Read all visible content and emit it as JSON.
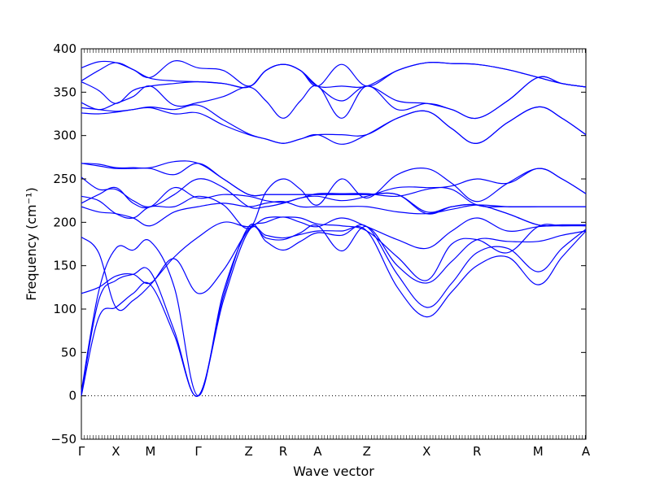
{
  "chart_data": {
    "type": "line",
    "xlabel": "Wave vector",
    "ylabel": "Frequency (cm⁻¹)",
    "ylim": [
      -50,
      400
    ],
    "yticks": [
      -50,
      0,
      50,
      100,
      150,
      200,
      250,
      300,
      350,
      400
    ],
    "xlim": [
      0,
      19
    ],
    "path_points": [
      {
        "label": "Γ",
        "x": 0
      },
      {
        "label": "X",
        "x": 1.3
      },
      {
        "label": "M",
        "x": 2.6
      },
      {
        "label": "Γ",
        "x": 4.4
      },
      {
        "label": "Z",
        "x": 6.3
      },
      {
        "label": "R",
        "x": 7.6
      },
      {
        "label": "A",
        "x": 8.9
      },
      {
        "label": "Z",
        "x": 10.75
      },
      {
        "label": "X",
        "x": 13.0
      },
      {
        "label": "R",
        "x": 14.9
      },
      {
        "label": "M",
        "x": 17.2
      },
      {
        "label": "A",
        "x": 19.0
      }
    ],
    "zero_line": true,
    "grid": false,
    "line_color": "#0000ff",
    "series": [
      {
        "x": [
          0,
          0.65,
          1.3,
          1.95,
          2.6,
          3.5,
          4.4,
          5.35,
          6.3,
          6.95,
          7.6,
          8.25,
          8.9,
          9.8,
          10.75,
          11.9,
          13.0,
          13.95,
          14.9,
          16.05,
          17.2,
          18.1,
          19.0
        ],
        "values": [
          0,
          90,
          102,
          118,
          128,
          70,
          0,
          110,
          190,
          185,
          182,
          186,
          190,
          190,
          190,
          125,
          91,
          120,
          150,
          160,
          128,
          160,
          190
        ]
      },
      {
        "x": [
          0,
          0.65,
          1.3,
          1.95,
          2.6,
          3.5,
          4.4,
          5.35,
          6.3,
          6.95,
          7.6,
          8.25,
          8.9,
          9.8,
          10.75,
          11.9,
          13.0,
          13.95,
          14.9,
          16.05,
          17.2,
          18.1,
          19.0
        ],
        "values": [
          2,
          110,
          133,
          140,
          143,
          75,
          0,
          115,
          195,
          178,
          168,
          178,
          188,
          185,
          195,
          140,
          102,
          130,
          165,
          170,
          143,
          170,
          192
        ]
      },
      {
        "x": [
          0,
          0.65,
          1.3,
          1.95,
          2.6,
          3.5,
          4.4,
          5.35,
          6.3,
          6.95,
          7.6,
          8.25,
          8.9,
          9.8,
          10.75,
          11.9,
          13.0,
          13.95,
          14.9,
          16.05,
          17.2,
          18.1,
          19.0
        ],
        "values": [
          5,
          120,
          170,
          168,
          178,
          125,
          0,
          120,
          192,
          182,
          180,
          188,
          196,
          167,
          195,
          150,
          130,
          155,
          180,
          178,
          178,
          185,
          190
        ]
      },
      {
        "x": [
          0,
          0.65,
          1.3,
          1.95,
          2.6,
          3.5,
          4.4,
          5.35,
          6.3,
          6.95,
          7.6,
          8.25,
          8.9,
          9.8,
          10.75,
          11.9,
          13.0,
          13.95,
          14.9,
          16.05,
          17.2,
          18.1,
          19.0
        ],
        "values": [
          118,
          125,
          138,
          140,
          130,
          158,
          118,
          145,
          192,
          200,
          206,
          200,
          195,
          205,
          195,
          180,
          170,
          190,
          205,
          190,
          195,
          196,
          196
        ]
      },
      {
        "x": [
          0,
          0.65,
          1.3,
          1.95,
          2.6,
          3.5,
          4.4,
          5.35,
          6.3,
          6.95,
          7.6,
          8.25,
          8.9,
          9.8,
          10.75,
          11.9,
          13.0,
          13.95,
          14.9,
          16.05,
          17.2,
          18.1,
          19.0
        ],
        "values": [
          183,
          165,
          102,
          110,
          128,
          160,
          183,
          200,
          195,
          205,
          206,
          205,
          198,
          196,
          190,
          160,
          133,
          175,
          180,
          165,
          195,
          196,
          196
        ]
      },
      {
        "x": [
          0,
          0.65,
          1.3,
          1.95,
          2.6,
          3.5,
          4.4,
          5.35,
          6.3,
          6.95,
          7.6,
          8.25,
          8.9,
          9.8,
          10.75,
          11.9,
          13.0,
          13.95,
          14.9,
          16.05,
          17.2,
          18.1,
          19.0
        ],
        "values": [
          218,
          212,
          210,
          205,
          196,
          212,
          218,
          222,
          218,
          222,
          224,
          218,
          218,
          218,
          218,
          212,
          210,
          215,
          220,
          218,
          218,
          218,
          218
        ]
      },
      {
        "x": [
          0,
          0.65,
          1.3,
          1.95,
          2.6,
          3.5,
          4.4,
          5.35,
          6.3,
          6.95,
          7.6,
          8.25,
          8.9,
          9.8,
          10.75,
          11.9,
          13.0,
          13.95,
          14.9,
          16.05,
          17.2,
          18.1,
          19.0
        ],
        "values": [
          222,
          232,
          240,
          222,
          218,
          240,
          228,
          232,
          230,
          225,
          223,
          228,
          233,
          233,
          233,
          230,
          238,
          242,
          250,
          245,
          262,
          250,
          233
        ]
      },
      {
        "x": [
          0,
          0.65,
          1.3,
          1.95,
          2.6,
          3.5,
          4.4,
          5.35,
          6.3,
          6.95,
          7.6,
          8.25,
          8.9,
          9.8,
          10.75,
          11.9,
          13.0,
          13.95,
          14.9,
          16.05,
          17.2,
          18.1,
          19.0
        ],
        "values": [
          230,
          225,
          210,
          205,
          218,
          218,
          230,
          220,
          193,
          235,
          250,
          238,
          220,
          250,
          228,
          255,
          262,
          245,
          224,
          245,
          262,
          250,
          233
        ]
      },
      {
        "x": [
          0,
          0.65,
          1.3,
          1.95,
          2.6,
          3.5,
          4.4,
          5.35,
          6.3,
          6.95,
          7.6,
          8.25,
          8.9,
          9.8,
          10.75,
          11.9,
          13.0,
          13.95,
          14.9,
          16.05,
          17.2,
          18.1,
          19.0
        ],
        "values": [
          252,
          238,
          238,
          225,
          218,
          232,
          250,
          240,
          218,
          218,
          222,
          228,
          230,
          225,
          230,
          240,
          240,
          238,
          220,
          218,
          218,
          218,
          218
        ]
      },
      {
        "x": [
          0,
          0.65,
          1.3,
          1.95,
          2.6,
          3.5,
          4.4,
          5.35,
          6.3,
          6.95,
          7.6,
          8.25,
          8.9,
          9.8,
          10.75,
          11.9,
          13.0,
          13.95,
          14.9,
          16.05,
          17.2,
          18.1,
          19.0
        ],
        "values": [
          268,
          265,
          262,
          262,
          262,
          255,
          268,
          250,
          232,
          232,
          232,
          232,
          232,
          232,
          232,
          232,
          210,
          218,
          220,
          210,
          197,
          197,
          197
        ]
      },
      {
        "x": [
          0,
          0.65,
          1.3,
          1.95,
          2.6,
          3.5,
          4.4,
          5.35,
          6.3,
          6.95,
          7.6,
          8.25,
          8.9,
          9.8,
          10.75,
          11.9,
          13.0,
          13.95,
          14.9,
          16.05,
          17.2,
          18.1,
          19.0
        ],
        "values": [
          268,
          267,
          263,
          263,
          263,
          270,
          268,
          250,
          232,
          232,
          232,
          232,
          232,
          232,
          232,
          232,
          212,
          218,
          220,
          210,
          197,
          197,
          197
        ]
      },
      {
        "x": [
          0,
          0.65,
          1.3,
          1.95,
          2.6,
          3.5,
          4.4,
          5.35,
          6.3,
          6.95,
          7.6,
          8.25,
          8.9,
          9.8,
          10.75,
          11.9,
          13.0,
          13.95,
          14.9,
          16.05,
          17.2,
          18.1,
          19.0
        ],
        "values": [
          326,
          325,
          327,
          330,
          332,
          325,
          326,
          312,
          301,
          296,
          291,
          296,
          301,
          290,
          301,
          320,
          328,
          308,
          291,
          315,
          333,
          320,
          301
        ]
      },
      {
        "x": [
          0,
          0.65,
          1.3,
          1.95,
          2.6,
          3.5,
          4.4,
          5.35,
          6.3,
          6.95,
          7.6,
          8.25,
          8.9,
          9.8,
          10.75,
          11.9,
          13.0,
          13.95,
          14.9,
          16.05,
          17.2,
          18.1,
          19.0
        ],
        "values": [
          332,
          330,
          328,
          330,
          333,
          330,
          335,
          318,
          302,
          296,
          291,
          296,
          301,
          301,
          301,
          320,
          328,
          308,
          291,
          315,
          333,
          320,
          301
        ]
      },
      {
        "x": [
          0,
          0.65,
          1.3,
          1.95,
          2.6,
          3.5,
          4.4,
          5.35,
          6.3,
          6.95,
          7.6,
          8.25,
          8.9,
          9.8,
          10.75,
          11.9,
          13.0,
          13.95,
          14.9,
          16.05,
          17.2,
          18.1,
          19.0
        ],
        "values": [
          338,
          330,
          337,
          345,
          357,
          335,
          338,
          345,
          356,
          340,
          320,
          340,
          357,
          320,
          357,
          330,
          337,
          330,
          320,
          340,
          367,
          360,
          356
        ]
      },
      {
        "x": [
          0,
          0.65,
          1.3,
          1.95,
          2.6,
          3.5,
          4.4,
          5.35,
          6.3,
          6.95,
          7.6,
          8.25,
          8.9,
          9.8,
          10.75,
          11.9,
          13.0,
          13.95,
          14.9,
          16.05,
          17.2,
          18.1,
          19.0
        ],
        "values": [
          362,
          352,
          337,
          352,
          357,
          360,
          362,
          360,
          356,
          375,
          382,
          375,
          357,
          340,
          357,
          340,
          337,
          330,
          320,
          340,
          367,
          360,
          356
        ]
      },
      {
        "x": [
          0,
          0.65,
          1.3,
          1.95,
          2.6,
          3.5,
          4.4,
          5.35,
          6.3,
          6.95,
          7.6,
          8.25,
          8.9,
          9.8,
          10.75,
          11.9,
          13.0,
          13.95,
          14.9,
          16.05,
          17.2,
          18.1,
          19.0
        ],
        "values": [
          363,
          375,
          384,
          376,
          366,
          363,
          362,
          360,
          356,
          375,
          382,
          375,
          357,
          382,
          357,
          375,
          384,
          383,
          382,
          376,
          367,
          360,
          356
        ]
      },
      {
        "x": [
          0,
          0.65,
          1.3,
          1.95,
          2.6,
          3.5,
          4.4,
          5.35,
          6.3,
          6.95,
          7.6,
          8.25,
          8.9,
          9.8,
          10.75,
          11.9,
          13.0,
          13.95,
          14.9,
          16.05,
          17.2,
          18.1,
          19.0
        ],
        "values": [
          378,
          385,
          384,
          376,
          367,
          386,
          378,
          375,
          357,
          375,
          382,
          375,
          357,
          357,
          357,
          375,
          384,
          383,
          382,
          376,
          367,
          360,
          356
        ]
      }
    ]
  }
}
